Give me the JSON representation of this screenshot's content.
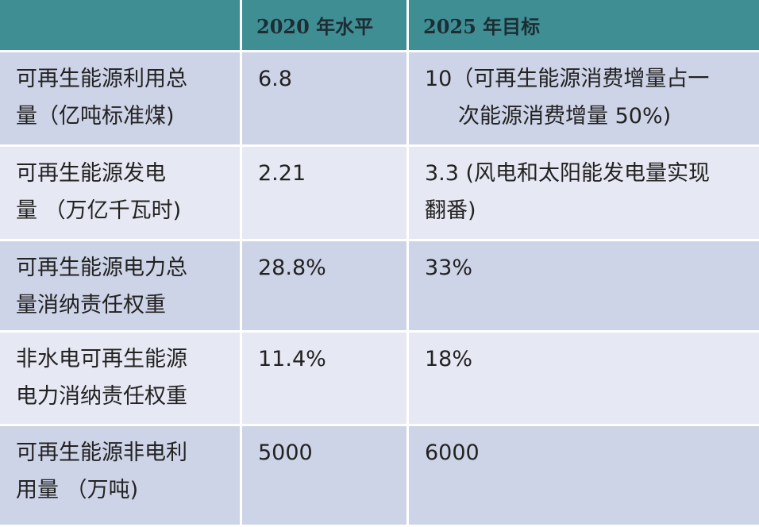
{
  "table": {
    "headers": [
      "",
      "2020 年水平",
      "2025 年目标"
    ],
    "rows": [
      {
        "metric_lines": [
          "可再生能源利用总",
          "量（亿吨标准煤)"
        ],
        "value_2020": "6.8",
        "target_2025_lines": [
          "10（可再生能源消费增量占一",
          "次能源消费增量 50%)"
        ]
      },
      {
        "metric_lines": [
          "可再生能源发电",
          "量 （万亿千瓦时)"
        ],
        "value_2020": "2.21",
        "target_2025_lines": [
          "3.3 (风电和太阳能发电量实现",
          "翻番)"
        ]
      },
      {
        "metric_lines": [
          "可再生能源电力总",
          "量消纳责任权重"
        ],
        "value_2020": "28.8%",
        "target_2025_lines": [
          "33%"
        ]
      },
      {
        "metric_lines": [
          "非水电可再生能源",
          "电力消纳责任权重"
        ],
        "value_2020": "11.4%",
        "target_2025_lines": [
          "18%"
        ]
      },
      {
        "metric_lines": [
          "可再生能源非电利",
          "用量 （万吨)"
        ],
        "value_2020": "5000",
        "target_2025_lines": [
          "6000"
        ]
      }
    ]
  },
  "colors": {
    "header_bg": "#3f8e94",
    "row_dark": "#ced4e7",
    "row_light": "#e6e9f3"
  }
}
